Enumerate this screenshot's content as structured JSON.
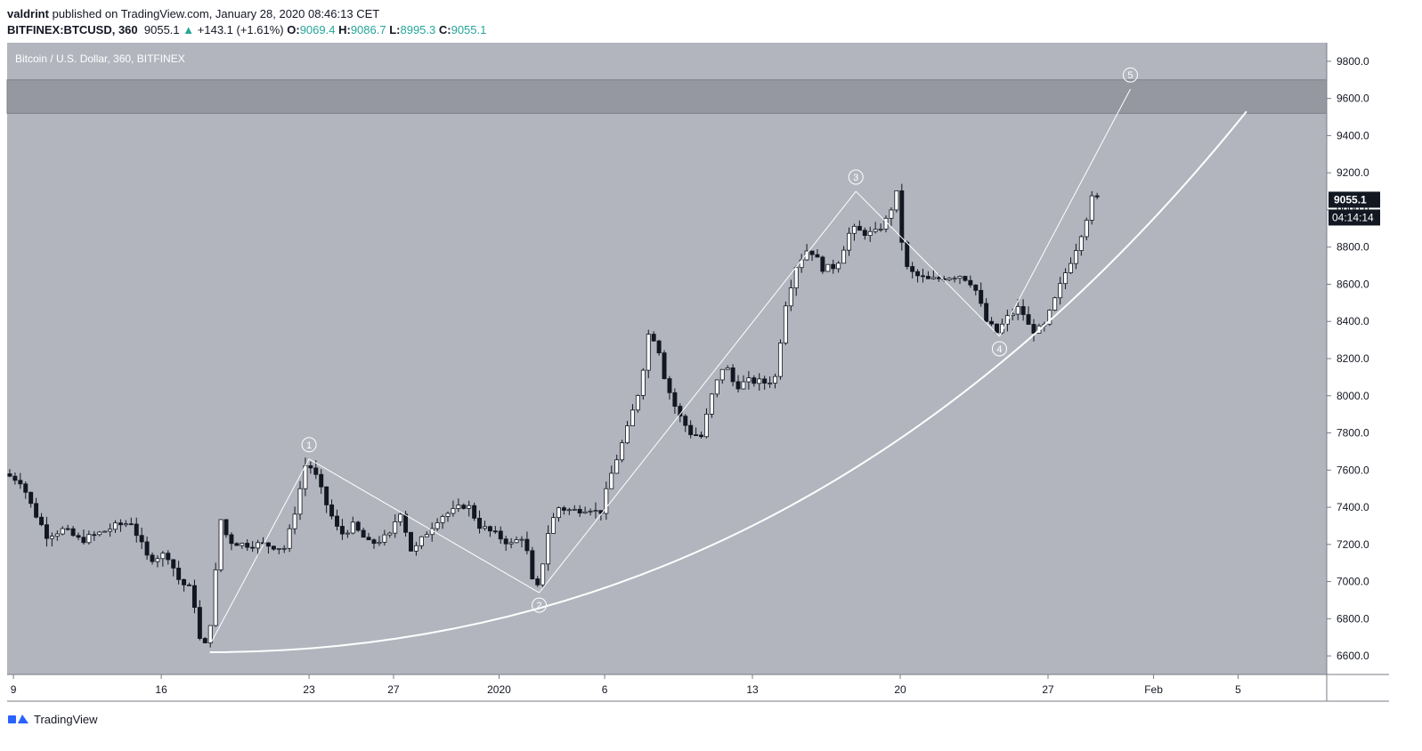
{
  "header": {
    "author": "valdrint",
    "published_text": "published on TradingView.com, January 28, 2020 08:46:13 CET",
    "symbol": "BITFINEX:BTCUSD, 360",
    "last": "9055.1",
    "change_arrow": "▲",
    "change": "+143.1 (+1.61%)",
    "o_label": "O:",
    "o_value": "9069.4",
    "h_label": "H:",
    "h_value": "9086.7",
    "l_label": "L:",
    "l_value": "8995.3",
    "c_label": "C:",
    "c_value": "9055.1"
  },
  "footer": {
    "brand": "TradingView"
  },
  "chart_data": {
    "type": "candlestick",
    "title": "Bitcoin / U.S. Dollar, 360, BITFINEX",
    "ylim": [
      6500,
      9900
    ],
    "y_ticks": [
      "9800.0",
      "9600.0",
      "9400.0",
      "9200.0",
      "9000.0",
      "8800.0",
      "8600.0",
      "8400.0",
      "8200.0",
      "8000.0",
      "7800.0",
      "7600.0",
      "7400.0",
      "7200.0",
      "7000.0",
      "6800.0",
      "6600.0"
    ],
    "x_ticks": [
      {
        "label": "9",
        "day": 9
      },
      {
        "label": "16",
        "day": 16
      },
      {
        "label": "23",
        "day": 23
      },
      {
        "label": "27",
        "day": 27
      },
      {
        "label": "2020",
        "day": 32
      },
      {
        "label": "6",
        "day": 37
      },
      {
        "label": "13",
        "day": 44
      },
      {
        "label": "20",
        "day": 51
      },
      {
        "label": "27",
        "day": 58
      },
      {
        "label": "Feb",
        "day": 63
      },
      {
        "label": "5",
        "day": 67
      }
    ],
    "x_range_days": [
      8.7,
      71.2
    ],
    "last_price_label": "9055.1",
    "countdown_label": "04:14:14",
    "resistance_zone": [
      9520,
      9700
    ],
    "wave_points": [
      {
        "label": "",
        "day": 18.4,
        "price": 6680
      },
      {
        "label": "1",
        "day": 23.0,
        "price": 7660
      },
      {
        "label": "2",
        "day": 33.9,
        "price": 6940
      },
      {
        "label": "3",
        "day": 48.9,
        "price": 9100
      },
      {
        "label": "4",
        "day": 55.7,
        "price": 8320
      },
      {
        "label": "5",
        "day": 61.9,
        "price": 9650
      }
    ],
    "curve": {
      "start_day": 18.3,
      "start_price": 6620,
      "end_day": 67.4,
      "end_price": 9530
    },
    "candle_anchors": [
      [
        8.7,
        7580
      ],
      [
        9.5,
        7540
      ],
      [
        10,
        7400
      ],
      [
        10.7,
        7250
      ],
      [
        11.5,
        7280
      ],
      [
        12.3,
        7220
      ],
      [
        13.2,
        7260
      ],
      [
        14,
        7300
      ],
      [
        14.7,
        7320
      ],
      [
        15.5,
        7120
      ],
      [
        16.4,
        7150
      ],
      [
        17,
        7000
      ],
      [
        17.6,
        6950
      ],
      [
        18.0,
        6650
      ],
      [
        18.3,
        6660
      ],
      [
        18.6,
        6900
      ],
      [
        18.9,
        7350
      ],
      [
        19.3,
        7220
      ],
      [
        20,
        7200
      ],
      [
        21,
        7200
      ],
      [
        22,
        7180
      ],
      [
        22.5,
        7400
      ],
      [
        23.0,
        7650
      ],
      [
        23.4,
        7580
      ],
      [
        24,
        7400
      ],
      [
        24.6,
        7250
      ],
      [
        25.2,
        7300
      ],
      [
        26,
        7200
      ],
      [
        27,
        7250
      ],
      [
        27.4,
        7400
      ],
      [
        28,
        7150
      ],
      [
        28.6,
        7250
      ],
      [
        29.3,
        7350
      ],
      [
        30,
        7380
      ],
      [
        30.6,
        7420
      ],
      [
        31.2,
        7300
      ],
      [
        32,
        7250
      ],
      [
        32.7,
        7200
      ],
      [
        33.3,
        7250
      ],
      [
        33.7,
        7000
      ],
      [
        34.0,
        6960
      ],
      [
        34.4,
        7250
      ],
      [
        34.9,
        7400
      ],
      [
        35.6,
        7380
      ],
      [
        36.4,
        7400
      ],
      [
        36.9,
        7360
      ],
      [
        37.5,
        7600
      ],
      [
        38.2,
        7820
      ],
      [
        38.8,
        8050
      ],
      [
        39.2,
        8330
      ],
      [
        39.6,
        8300
      ],
      [
        40.0,
        8080
      ],
      [
        40.6,
        7900
      ],
      [
        41.2,
        7800
      ],
      [
        41.7,
        7780
      ],
      [
        42.2,
        8000
      ],
      [
        42.8,
        8180
      ],
      [
        43.3,
        8050
      ],
      [
        44.0,
        8080
      ],
      [
        44.8,
        8070
      ],
      [
        45.2,
        8100
      ],
      [
        45.7,
        8500
      ],
      [
        46.2,
        8700
      ],
      [
        46.8,
        8800
      ],
      [
        47.5,
        8680
      ],
      [
        48.1,
        8700
      ],
      [
        48.8,
        8900
      ],
      [
        49.3,
        8880
      ],
      [
        49.9,
        8870
      ],
      [
        50.5,
        8950
      ],
      [
        51.0,
        9100
      ],
      [
        51.3,
        8700
      ],
      [
        51.8,
        8650
      ],
      [
        52.5,
        8620
      ],
      [
        53.3,
        8640
      ],
      [
        54.0,
        8650
      ],
      [
        54.6,
        8600
      ],
      [
        55.2,
        8400
      ],
      [
        55.7,
        8340
      ],
      [
        56.2,
        8420
      ],
      [
        56.8,
        8480
      ],
      [
        57.3,
        8350
      ],
      [
        57.9,
        8360
      ],
      [
        58.4,
        8500
      ],
      [
        58.9,
        8650
      ],
      [
        59.4,
        8780
      ],
      [
        59.9,
        8940
      ],
      [
        60.2,
        9060
      ]
    ]
  }
}
